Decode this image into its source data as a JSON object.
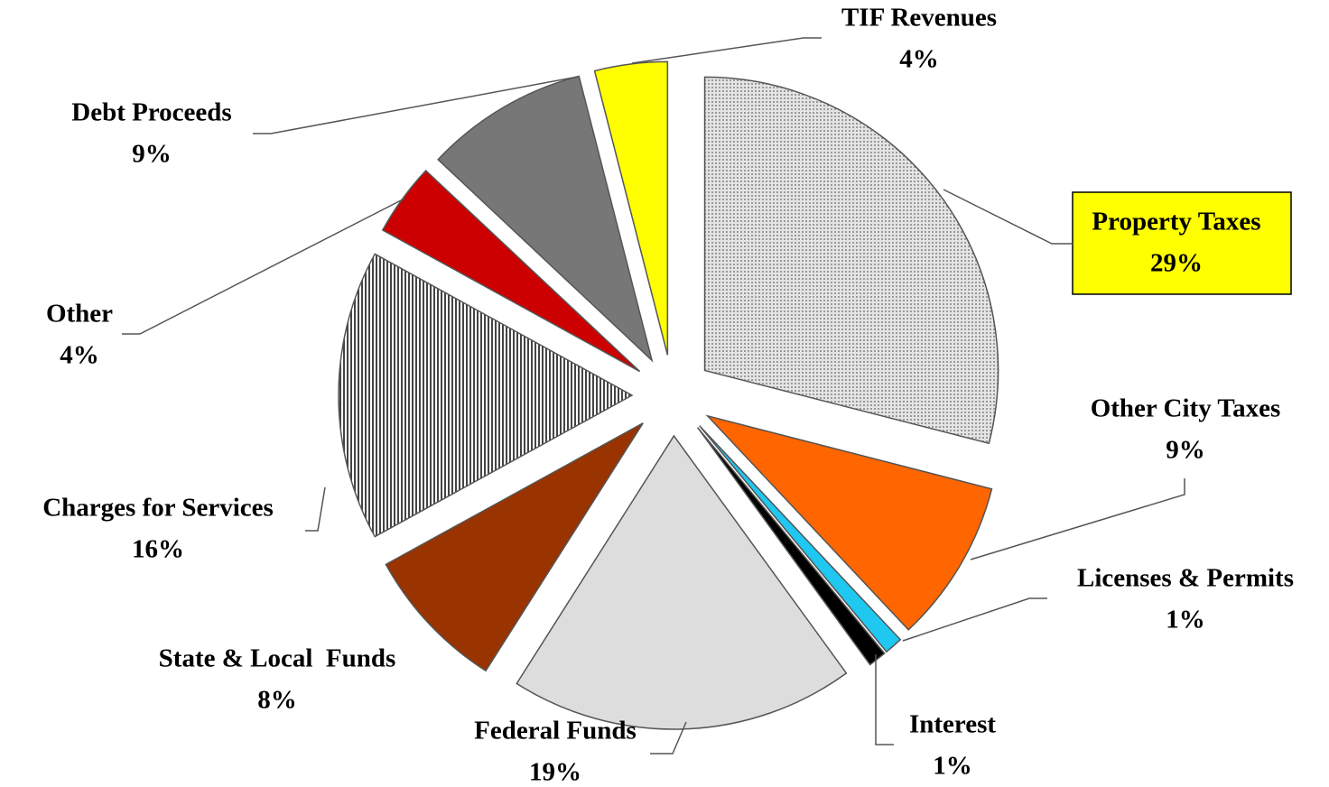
{
  "chart_data": {
    "type": "pie",
    "categories": [
      "Property Taxes",
      "Other City Taxes",
      "Licenses & Permits",
      "Interest",
      "Federal Funds",
      "State & Local  Funds",
      "Charges for Services",
      "Other",
      "Debt Proceeds",
      "TIF Revenues"
    ],
    "values": [
      29,
      9,
      1,
      1,
      19,
      8,
      16,
      4,
      9,
      4
    ],
    "value_labels": [
      "29%",
      "9%",
      "1%",
      "1%",
      "19%",
      "8%",
      "16%",
      "4%",
      "9%",
      "4%"
    ],
    "colors": [
      "#cfcfcf",
      "#ff6600",
      "#1ec8f0",
      "#000000",
      "#dddddd",
      "#993300",
      "#8a8a8a",
      "#cc0000",
      "#777777",
      "#ffff00"
    ]
  }
}
